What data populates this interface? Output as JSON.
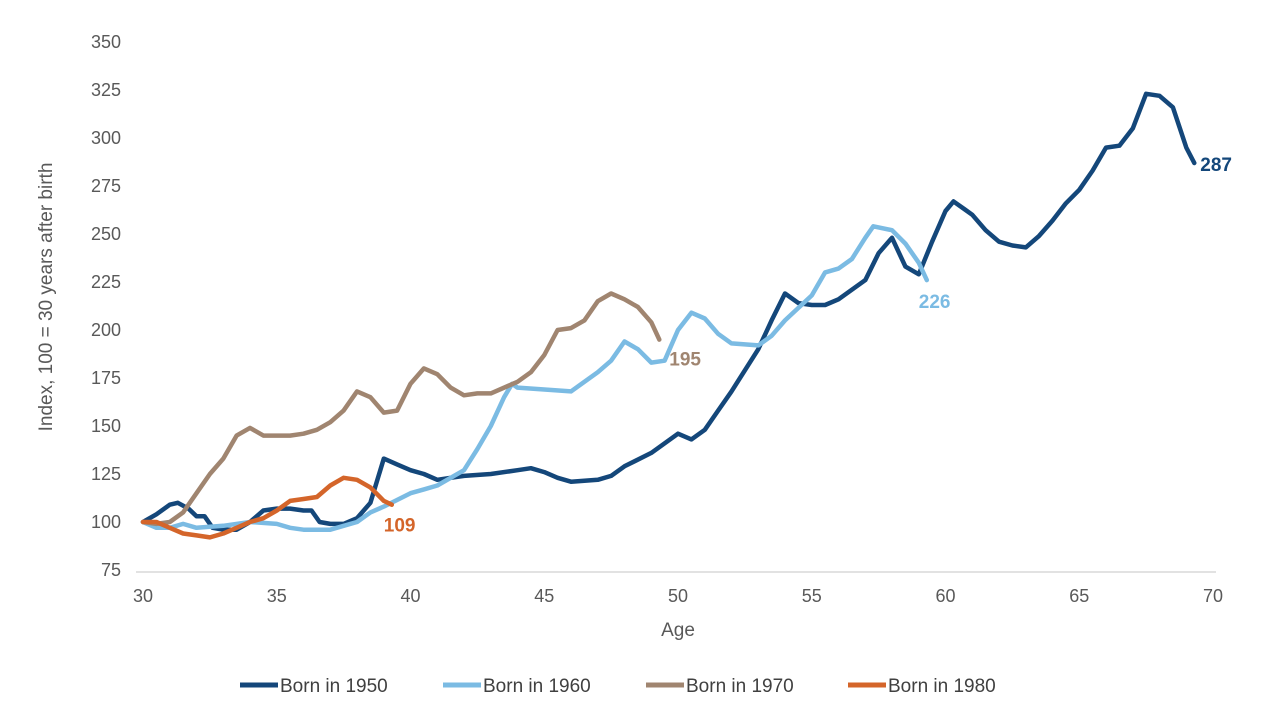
{
  "chart_data": {
    "type": "line",
    "title": "",
    "xlabel": "Age",
    "ylabel": "Index, 100 = 30 years after birth",
    "xlim": [
      30,
      70
    ],
    "ylim": [
      75,
      350
    ],
    "xticks": [
      30,
      35,
      40,
      45,
      50,
      55,
      60,
      65,
      70
    ],
    "yticks": [
      75,
      100,
      125,
      150,
      175,
      200,
      225,
      250,
      275,
      300,
      325,
      350
    ],
    "grid": false,
    "legend_position": "bottom",
    "series": [
      {
        "name": "Born in 1950",
        "color": "#14477a",
        "end_label": "287",
        "points": [
          [
            30,
            100
          ],
          [
            30.5,
            104
          ],
          [
            31,
            109
          ],
          [
            31.3,
            110
          ],
          [
            31.7,
            107
          ],
          [
            32,
            103
          ],
          [
            32.3,
            103
          ],
          [
            32.6,
            97
          ],
          [
            33,
            96
          ],
          [
            33.5,
            96
          ],
          [
            34,
            100
          ],
          [
            34.5,
            106
          ],
          [
            35,
            107
          ],
          [
            35.5,
            107
          ],
          [
            36,
            106
          ],
          [
            36.3,
            106
          ],
          [
            36.6,
            100
          ],
          [
            37,
            99
          ],
          [
            37.5,
            99
          ],
          [
            38,
            102
          ],
          [
            38.5,
            110
          ],
          [
            39,
            133
          ],
          [
            39.5,
            130
          ],
          [
            40,
            127
          ],
          [
            40.5,
            125
          ],
          [
            41,
            122
          ],
          [
            41.5,
            123
          ],
          [
            42,
            124
          ],
          [
            43,
            125
          ],
          [
            44,
            127
          ],
          [
            44.5,
            128
          ],
          [
            45,
            126
          ],
          [
            45.5,
            123
          ],
          [
            46,
            121
          ],
          [
            47,
            122
          ],
          [
            47.5,
            124
          ],
          [
            48,
            129
          ],
          [
            49,
            136
          ],
          [
            50,
            146
          ],
          [
            50.5,
            143
          ],
          [
            51,
            148
          ],
          [
            51.5,
            158
          ],
          [
            52,
            168
          ],
          [
            53,
            190
          ],
          [
            53.5,
            205
          ],
          [
            54,
            219
          ],
          [
            54.5,
            214
          ],
          [
            55,
            213
          ],
          [
            55.5,
            213
          ],
          [
            56,
            216
          ],
          [
            57,
            226
          ],
          [
            57.5,
            240
          ],
          [
            58,
            248
          ],
          [
            58.5,
            233
          ],
          [
            59,
            229
          ],
          [
            59.5,
            246
          ],
          [
            60,
            262
          ],
          [
            60.3,
            267
          ],
          [
            60.7,
            263
          ],
          [
            61,
            260
          ],
          [
            61.5,
            252
          ],
          [
            62,
            246
          ],
          [
            62.5,
            244
          ],
          [
            63,
            243
          ],
          [
            63.5,
            249
          ],
          [
            64,
            257
          ],
          [
            64.5,
            266
          ],
          [
            65,
            273
          ],
          [
            65.5,
            283
          ],
          [
            66,
            295
          ],
          [
            66.5,
            296
          ],
          [
            67,
            305
          ],
          [
            67.5,
            323
          ],
          [
            68,
            322
          ],
          [
            68.5,
            316
          ],
          [
            69,
            295
          ],
          [
            69.3,
            287
          ]
        ]
      },
      {
        "name": "Born in 1960",
        "color": "#7bbbe3",
        "end_label": "226",
        "points": [
          [
            30,
            100
          ],
          [
            30.5,
            97
          ],
          [
            31,
            97
          ],
          [
            31.5,
            99
          ],
          [
            32,
            97
          ],
          [
            33,
            98
          ],
          [
            34,
            100
          ],
          [
            35,
            99
          ],
          [
            35.5,
            97
          ],
          [
            36,
            96
          ],
          [
            37,
            96
          ],
          [
            38,
            100
          ],
          [
            38.5,
            105
          ],
          [
            39,
            108
          ],
          [
            40,
            115
          ],
          [
            40.5,
            117
          ],
          [
            41,
            119
          ],
          [
            42,
            127
          ],
          [
            42.5,
            138
          ],
          [
            43,
            150
          ],
          [
            43.5,
            165
          ],
          [
            43.8,
            172
          ],
          [
            44,
            170
          ],
          [
            45,
            169
          ],
          [
            46,
            168
          ],
          [
            47,
            178
          ],
          [
            47.5,
            184
          ],
          [
            48,
            194
          ],
          [
            48.5,
            190
          ],
          [
            49,
            183
          ],
          [
            49.5,
            184
          ],
          [
            50,
            200
          ],
          [
            50.5,
            209
          ],
          [
            51,
            206
          ],
          [
            51.5,
            198
          ],
          [
            52,
            193
          ],
          [
            53,
            192
          ],
          [
            53.5,
            197
          ],
          [
            54,
            205
          ],
          [
            55,
            218
          ],
          [
            55.5,
            230
          ],
          [
            56,
            232
          ],
          [
            56.5,
            237
          ],
          [
            57,
            248
          ],
          [
            57.3,
            254
          ],
          [
            58,
            252
          ],
          [
            58.5,
            245
          ],
          [
            59,
            235
          ],
          [
            59.3,
            226
          ]
        ]
      },
      {
        "name": "Born in 1970",
        "color": "#a08570",
        "end_label": "195",
        "points": [
          [
            30,
            100
          ],
          [
            30.5,
            99
          ],
          [
            31,
            100
          ],
          [
            31.5,
            105
          ],
          [
            32,
            115
          ],
          [
            32.5,
            125
          ],
          [
            33,
            133
          ],
          [
            33.5,
            145
          ],
          [
            34,
            149
          ],
          [
            34.5,
            145
          ],
          [
            35,
            145
          ],
          [
            35.5,
            145
          ],
          [
            36,
            146
          ],
          [
            36.5,
            148
          ],
          [
            37,
            152
          ],
          [
            37.5,
            158
          ],
          [
            38,
            168
          ],
          [
            38.5,
            165
          ],
          [
            39,
            157
          ],
          [
            39.5,
            158
          ],
          [
            40,
            172
          ],
          [
            40.5,
            180
          ],
          [
            41,
            177
          ],
          [
            41.5,
            170
          ],
          [
            42,
            166
          ],
          [
            42.5,
            167
          ],
          [
            43,
            167
          ],
          [
            44,
            173
          ],
          [
            44.5,
            178
          ],
          [
            45,
            187
          ],
          [
            45.5,
            200
          ],
          [
            46,
            201
          ],
          [
            46.5,
            205
          ],
          [
            47,
            215
          ],
          [
            47.5,
            219
          ],
          [
            48,
            216
          ],
          [
            48.5,
            212
          ],
          [
            49,
            204
          ],
          [
            49.3,
            195
          ]
        ]
      },
      {
        "name": "Born in 1980",
        "color": "#d4652a",
        "end_label": "109",
        "points": [
          [
            30,
            100
          ],
          [
            30.5,
            100
          ],
          [
            31,
            97
          ],
          [
            31.5,
            94
          ],
          [
            32,
            93
          ],
          [
            32.5,
            92
          ],
          [
            33,
            94
          ],
          [
            33.5,
            97
          ],
          [
            34,
            100
          ],
          [
            34.5,
            102
          ],
          [
            35,
            106
          ],
          [
            35.5,
            111
          ],
          [
            36,
            112
          ],
          [
            36.5,
            113
          ],
          [
            37,
            119
          ],
          [
            37.5,
            123
          ],
          [
            38,
            122
          ],
          [
            38.5,
            118
          ],
          [
            39,
            111
          ],
          [
            39.3,
            109
          ]
        ]
      }
    ]
  }
}
